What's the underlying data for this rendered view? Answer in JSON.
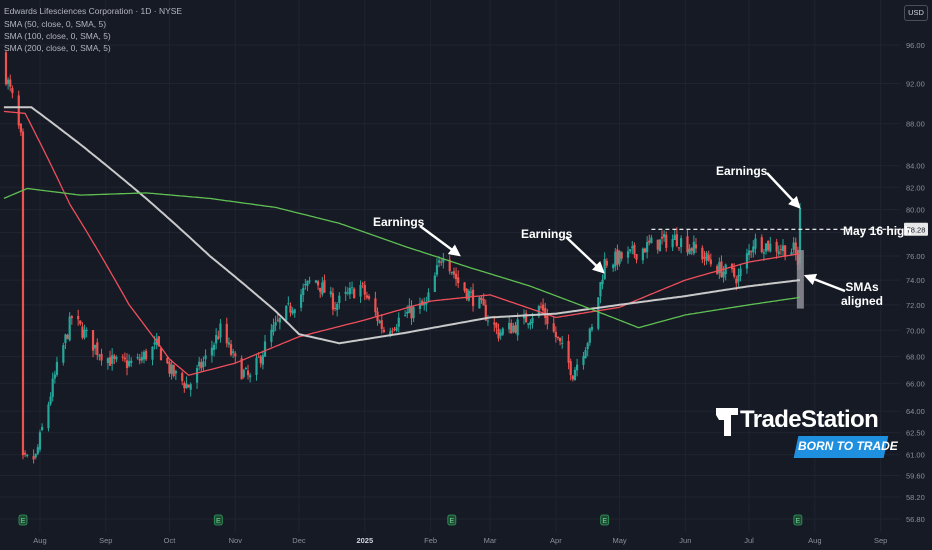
{
  "header": {
    "symbol_line": "Edwards Lifesciences Corporation · 1D · NYSE",
    "indicator_lines": [
      "SMA (50, close, 0, SMA, 5)",
      "SMA (100, close, 0, SMA, 5)",
      "SMA (200, close, 0, SMA, 5)"
    ],
    "currency": "USD"
  },
  "logo": {
    "name": "TradeStation",
    "tagline": "BORN TO TRADE"
  },
  "colors": {
    "background": "#161a25",
    "up_candle": "#26a69a",
    "down_candle": "#ef5350",
    "sma50": "#ef4f5a",
    "sma100": "#c9c9c9",
    "sma200": "#5fbf52",
    "annotation": "#ffffff",
    "logo_badge": "#1f8fe0"
  },
  "chart_data": {
    "type": "candlestick",
    "x_axis": {
      "ticks": [
        "Aug",
        "Sep",
        "Oct",
        "Nov",
        "Dec",
        "2025",
        "Feb",
        "Mar",
        "Apr",
        "May",
        "Jun",
        "Jul",
        "Aug",
        "Sep"
      ],
      "bold_ticks": [
        "2025"
      ]
    },
    "y_axis": {
      "scale": "log",
      "ylim": [
        56.2,
        97.0
      ],
      "ticks": [
        "96.00",
        "92.00",
        "88.00",
        "84.00",
        "82.00",
        "80.00",
        "78.00",
        "76.00",
        "74.00",
        "72.00",
        "70.00",
        "68.00",
        "66.00",
        "64.00",
        "62.50",
        "61.00",
        "59.60",
        "58.20",
        "56.80"
      ]
    },
    "start_date": "2024-07-15",
    "end_date": "2025-07-25",
    "ohlc_anchor_closes": [
      {
        "date": "2024-07-15",
        "close": 93.5
      },
      {
        "date": "2024-07-19",
        "close": 90.5
      },
      {
        "date": "2024-07-23",
        "close": 86.5
      },
      {
        "date": "2024-07-24",
        "close": 60.5
      },
      {
        "date": "2024-07-30",
        "close": 60.8
      },
      {
        "date": "2024-08-08",
        "close": 66.5
      },
      {
        "date": "2024-08-16",
        "close": 71.0
      },
      {
        "date": "2024-08-28",
        "close": 68.5
      },
      {
        "date": "2024-09-05",
        "close": 67.5
      },
      {
        "date": "2024-09-15",
        "close": 67.5
      },
      {
        "date": "2024-09-25",
        "close": 68.8
      },
      {
        "date": "2024-10-02",
        "close": 66.8
      },
      {
        "date": "2024-10-10",
        "close": 65.8
      },
      {
        "date": "2024-10-18",
        "close": 67.8
      },
      {
        "date": "2024-10-25",
        "close": 70.0
      },
      {
        "date": "2024-11-02",
        "close": 67.2
      },
      {
        "date": "2024-11-08",
        "close": 66.3
      },
      {
        "date": "2024-11-18",
        "close": 69.8
      },
      {
        "date": "2024-11-28",
        "close": 72.0
      },
      {
        "date": "2024-12-08",
        "close": 74.2
      },
      {
        "date": "2024-12-18",
        "close": 72.0
      },
      {
        "date": "2024-12-30",
        "close": 73.5
      },
      {
        "date": "2025-01-10",
        "close": 70.0
      },
      {
        "date": "2025-01-20",
        "close": 71.2
      },
      {
        "date": "2025-01-30",
        "close": 72.0
      },
      {
        "date": "2025-02-07",
        "close": 76.4
      },
      {
        "date": "2025-02-14",
        "close": 73.8
      },
      {
        "date": "2025-02-24",
        "close": 72.0
      },
      {
        "date": "2025-03-05",
        "close": 69.8
      },
      {
        "date": "2025-03-15",
        "close": 70.5
      },
      {
        "date": "2025-03-25",
        "close": 71.8
      },
      {
        "date": "2025-04-04",
        "close": 68.5
      },
      {
        "date": "2025-04-09",
        "close": 66.8
      },
      {
        "date": "2025-04-18",
        "close": 70.0
      },
      {
        "date": "2025-04-24",
        "close": 75.5
      },
      {
        "date": "2025-05-05",
        "close": 76.0
      },
      {
        "date": "2025-05-16",
        "close": 77.0
      },
      {
        "date": "2025-05-28",
        "close": 77.5
      },
      {
        "date": "2025-06-06",
        "close": 76.5
      },
      {
        "date": "2025-06-16",
        "close": 75.0
      },
      {
        "date": "2025-06-26",
        "close": 74.2
      },
      {
        "date": "2025-07-03",
        "close": 77.2
      },
      {
        "date": "2025-07-12",
        "close": 76.8
      },
      {
        "date": "2025-07-22",
        "close": 76.5
      },
      {
        "date": "2025-07-24",
        "close": 75.5
      },
      {
        "date": "2025-07-25",
        "close": 79.8
      }
    ],
    "sma_series": [
      {
        "name": "SMA (50, close, 0, SMA, 5)",
        "anchors": [
          {
            "date": "2024-07-15",
            "value": 89.2
          },
          {
            "date": "2024-07-25",
            "value": 89.0
          },
          {
            "date": "2024-08-15",
            "value": 80.5
          },
          {
            "date": "2024-09-12",
            "value": 72.0
          },
          {
            "date": "2024-10-01",
            "value": 67.8
          },
          {
            "date": "2024-10-10",
            "value": 66.6
          },
          {
            "date": "2024-11-01",
            "value": 67.5
          },
          {
            "date": "2024-12-01",
            "value": 69.5
          },
          {
            "date": "2025-01-01",
            "value": 70.8
          },
          {
            "date": "2025-02-01",
            "value": 72.3
          },
          {
            "date": "2025-03-01",
            "value": 72.8
          },
          {
            "date": "2025-04-01",
            "value": 71.0
          },
          {
            "date": "2025-05-01",
            "value": 71.8
          },
          {
            "date": "2025-06-01",
            "value": 74.0
          },
          {
            "date": "2025-07-01",
            "value": 75.5
          },
          {
            "date": "2025-07-25",
            "value": 76.2
          }
        ]
      },
      {
        "name": "SMA (100, close, 0, SMA, 5)",
        "anchors": [
          {
            "date": "2024-07-15",
            "value": 89.6
          },
          {
            "date": "2024-07-28",
            "value": 89.6
          },
          {
            "date": "2024-08-20",
            "value": 86.0
          },
          {
            "date": "2024-09-20",
            "value": 81.0
          },
          {
            "date": "2024-10-20",
            "value": 76.0
          },
          {
            "date": "2024-11-20",
            "value": 71.5
          },
          {
            "date": "2024-12-01",
            "value": 69.7
          },
          {
            "date": "2024-12-20",
            "value": 69.0
          },
          {
            "date": "2025-01-20",
            "value": 69.8
          },
          {
            "date": "2025-03-01",
            "value": 71.0
          },
          {
            "date": "2025-04-01",
            "value": 71.3
          },
          {
            "date": "2025-05-01",
            "value": 72.0
          },
          {
            "date": "2025-06-01",
            "value": 72.7
          },
          {
            "date": "2025-07-01",
            "value": 73.5
          },
          {
            "date": "2025-07-25",
            "value": 74.0
          }
        ]
      },
      {
        "name": "SMA (200, close, 0, SMA, 5)",
        "anchors": [
          {
            "date": "2024-07-15",
            "value": 81.0
          },
          {
            "date": "2024-07-26",
            "value": 81.9
          },
          {
            "date": "2024-08-20",
            "value": 81.3
          },
          {
            "date": "2024-09-20",
            "value": 81.5
          },
          {
            "date": "2024-10-20",
            "value": 81.0
          },
          {
            "date": "2024-11-20",
            "value": 80.2
          },
          {
            "date": "2024-12-20",
            "value": 78.8
          },
          {
            "date": "2025-01-20",
            "value": 76.8
          },
          {
            "date": "2025-02-20",
            "value": 75.0
          },
          {
            "date": "2025-03-20",
            "value": 73.5
          },
          {
            "date": "2025-04-20",
            "value": 71.5
          },
          {
            "date": "2025-05-10",
            "value": 70.2
          },
          {
            "date": "2025-06-01",
            "value": 71.2
          },
          {
            "date": "2025-07-01",
            "value": 72.0
          },
          {
            "date": "2025-07-25",
            "value": 72.6
          }
        ]
      }
    ],
    "earnings_dates": [
      "2024-07-24",
      "2024-10-24",
      "2025-02-11",
      "2025-04-24",
      "2025-07-24"
    ],
    "earnings_icon_label": "E",
    "price_label": {
      "value": "78.28",
      "level": 78.28
    },
    "annotations": [
      {
        "text": "Earnings",
        "target_date": "2025-02-11",
        "target_price": 76.0
      },
      {
        "text": "Earnings",
        "target_date": "2025-04-24",
        "target_price": 75.8
      },
      {
        "text": "Earnings",
        "target_date": "2025-07-25",
        "target_price": 80.2
      },
      {
        "text": "May 16 high",
        "target_date": "2025-05-16",
        "target_price": 78.28
      },
      {
        "text": "SMAs",
        "text2": "aligned",
        "target_date": "2025-07-25",
        "target_price": 74.7
      }
    ],
    "highlight_band": {
      "date": "2025-07-24",
      "low": 71.7,
      "high": 76.5
    }
  }
}
